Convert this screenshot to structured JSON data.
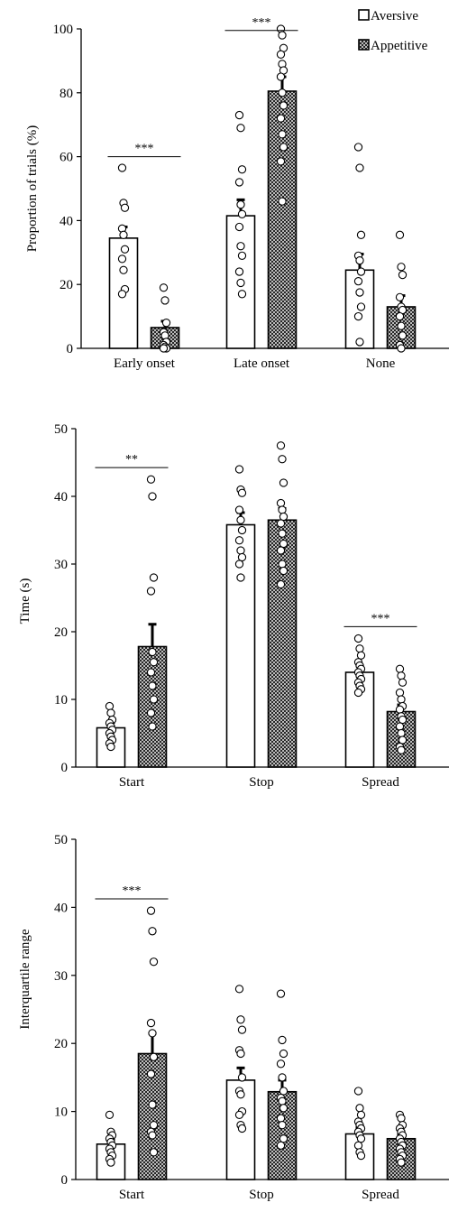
{
  "legend": {
    "items": [
      {
        "label": "Aversive",
        "pattern": "white"
      },
      {
        "label": "Appetitive",
        "pattern": "hatch"
      }
    ]
  },
  "chart_data": [
    {
      "type": "bar",
      "ylabel": "Proportion of trials (%)",
      "ylim": [
        0,
        100
      ],
      "yticks": [
        0,
        20,
        40,
        60,
        80,
        100
      ],
      "categories": [
        "Early onset",
        "Late onset",
        "None"
      ],
      "series": [
        {
          "name": "Aversive",
          "values": [
            34.5,
            41.5,
            24.5
          ],
          "errors": [
            3.5,
            5.0,
            5.0
          ]
        },
        {
          "name": "Appetitive",
          "values": [
            6.5,
            80.5,
            13.0
          ],
          "errors": [
            2.0,
            4.5,
            3.5
          ]
        }
      ],
      "points": [
        [
          [
            56.5,
            45.5,
            44,
            37.5,
            35.5,
            31,
            28,
            24.5,
            18.5,
            17
          ],
          [
            19,
            15,
            8,
            5,
            4,
            2,
            1,
            0.5,
            0,
            0
          ]
        ],
        [
          [
            73,
            69,
            56,
            52,
            45,
            42,
            38,
            32,
            29,
            24,
            20.5,
            17
          ],
          [
            100,
            98,
            94,
            92,
            89,
            87,
            85,
            80,
            76,
            72,
            67,
            63,
            58.5,
            46
          ]
        ],
        [
          [
            63,
            56.5,
            35.5,
            29,
            27.5,
            24,
            21,
            17.5,
            13,
            10,
            2
          ],
          [
            35.5,
            25.5,
            23,
            16,
            13,
            12,
            10,
            7,
            4,
            1,
            0
          ]
        ]
      ],
      "significance": [
        {
          "category": 0,
          "label": "***"
        },
        {
          "category": 1,
          "label": "***"
        }
      ]
    },
    {
      "type": "bar",
      "ylabel": "Time (s)",
      "ylim": [
        0,
        50
      ],
      "yticks": [
        0,
        10,
        20,
        30,
        40,
        50
      ],
      "categories": [
        "Start",
        "Stop",
        "Spread"
      ],
      "series": [
        {
          "name": "Aversive",
          "values": [
            5.8,
            35.8,
            14.0
          ],
          "errors": [
            0.8,
            1.8,
            1.0
          ]
        },
        {
          "name": "Appetitive",
          "values": [
            17.8,
            36.5,
            8.2
          ],
          "errors": [
            3.3,
            1.7,
            1.0
          ]
        }
      ],
      "points": [
        [
          [
            9,
            8,
            7,
            6.5,
            6,
            5.5,
            5,
            4.5,
            4,
            3.5,
            3
          ],
          [
            42.5,
            40,
            28,
            26,
            17,
            15.5,
            14,
            12,
            10,
            8,
            6
          ]
        ],
        [
          [
            44,
            41,
            40.5,
            38,
            36.5,
            35,
            33.5,
            32,
            31,
            30,
            28
          ],
          [
            47.5,
            45.5,
            42,
            39,
            38,
            37,
            36,
            34.5,
            33,
            32,
            30,
            29,
            27
          ]
        ],
        [
          [
            19,
            17.5,
            16.5,
            15.5,
            15,
            14.5,
            14,
            13.5,
            13,
            12.5,
            12,
            11.5,
            11
          ],
          [
            14.5,
            13.5,
            12.5,
            11,
            10,
            9,
            8.5,
            7.5,
            7,
            6,
            5,
            4,
            3,
            2.5
          ]
        ]
      ],
      "significance": [
        {
          "category": 0,
          "label": "**"
        },
        {
          "category": 2,
          "label": "***"
        }
      ]
    },
    {
      "type": "bar",
      "ylabel": "Interquartile range",
      "ylim": [
        0,
        50
      ],
      "yticks": [
        0,
        10,
        20,
        30,
        40,
        50
      ],
      "categories": [
        "Start",
        "Stop",
        "Spread"
      ],
      "series": [
        {
          "name": "Aversive",
          "values": [
            5.2,
            14.6,
            6.7
          ],
          "errors": [
            0.7,
            1.8,
            0.9
          ]
        },
        {
          "name": "Appetitive",
          "values": [
            18.5,
            12.9,
            6.0
          ],
          "errors": [
            3.0,
            1.7,
            0.7
          ]
        }
      ],
      "points": [
        [
          [
            9.5,
            7,
            6.5,
            6,
            5.5,
            5,
            4.5,
            4,
            3.5,
            3,
            2.5
          ],
          [
            39.5,
            36.5,
            32,
            23,
            21.5,
            18,
            15.5,
            11,
            8,
            7,
            6.5,
            4
          ]
        ],
        [
          [
            28,
            23.5,
            22,
            19,
            18.5,
            15,
            13,
            12.5,
            10,
            9.5,
            8,
            7.5
          ],
          [
            27.3,
            20.5,
            18.5,
            17,
            15,
            13,
            12,
            11.5,
            10.5,
            9,
            8,
            6,
            5
          ]
        ],
        [
          [
            13,
            10.5,
            9.5,
            8.5,
            8,
            7.5,
            7,
            6.5,
            6,
            5,
            4,
            3.5
          ],
          [
            9.5,
            9,
            8,
            7.5,
            7,
            6.5,
            6,
            5.5,
            5,
            4.5,
            4,
            3.5,
            3,
            2.5
          ]
        ]
      ],
      "significance": [
        {
          "category": 0,
          "label": "***"
        }
      ]
    }
  ]
}
